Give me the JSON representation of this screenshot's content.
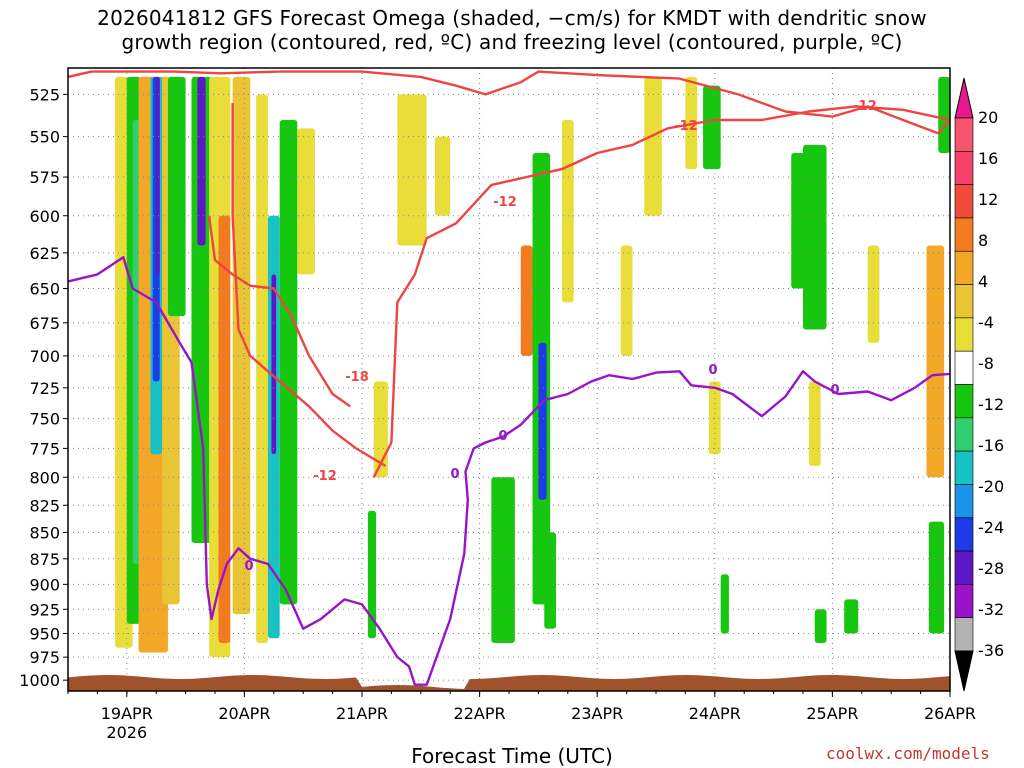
{
  "title": "2026041812 GFS Forecast Omega (shaded, −cm/s) for KMDT with dendritic snow\ngrowth region (contoured, red, ºC) and freezing level (contoured, purple, ºC)",
  "credit": "coolwx.com/models",
  "colors": {
    "ground": "#a0522d",
    "temp_contour": "#ef4444",
    "freezing_contour": "#9a13c9",
    "grid": "#888888"
  },
  "chart_data": {
    "type": "heatmap",
    "xlabel": "Forecast Time (UTC)",
    "ylabel": "",
    "x_ticks": [
      "19APR",
      "20APR",
      "21APR",
      "22APR",
      "23APR",
      "24APR",
      "25APR",
      "26APR"
    ],
    "x_year_label": "2026",
    "xlim_days": [
      18.5,
      26.0
    ],
    "y_ticks": [
      525,
      550,
      575,
      600,
      625,
      650,
      675,
      700,
      725,
      750,
      775,
      800,
      825,
      850,
      875,
      900,
      925,
      950,
      975,
      1000
    ],
    "ylim_hpa": [
      510,
      1012
    ],
    "y_scale": "log-pressure",
    "grid": true,
    "colorbar": {
      "labels": [
        "20",
        "16",
        "12",
        "8",
        "4",
        "-4",
        "-8",
        "-12",
        "-16",
        "-20",
        "-24",
        "-28",
        "-32",
        "-36"
      ],
      "colors": [
        "#f5566e",
        "#f5426a",
        "#ef4b38",
        "#f27a1f",
        "#f2a826",
        "#e9c435",
        "#e9dd3a",
        "#ffffff",
        "#17c70f",
        "#2fcf70",
        "#17c2c4",
        "#1994e6",
        "#1d3be6",
        "#5e17c7",
        "#9a13c9",
        "#b3b3b3"
      ],
      "top_arrow": "#e8198f",
      "bottom_arrow": "#000000"
    },
    "contour_labels": {
      "temperature": [
        "-18",
        "-12",
        "-12",
        "-12",
        "-12"
      ],
      "freezing": [
        "0",
        "0",
        "0",
        "0",
        "0"
      ]
    },
    "freezing_level_hpa": [
      {
        "t": 18.5,
        "p": 645
      },
      {
        "t": 18.75,
        "p": 640
      },
      {
        "t": 18.97,
        "p": 628
      },
      {
        "t": 19.05,
        "p": 650
      },
      {
        "t": 19.25,
        "p": 660
      },
      {
        "t": 19.45,
        "p": 690
      },
      {
        "t": 19.55,
        "p": 705
      },
      {
        "t": 19.65,
        "p": 775
      },
      {
        "t": 19.68,
        "p": 900
      },
      {
        "t": 19.72,
        "p": 935
      },
      {
        "t": 19.78,
        "p": 905
      },
      {
        "t": 19.85,
        "p": 880
      },
      {
        "t": 19.95,
        "p": 865
      },
      {
        "t": 20.05,
        "p": 875
      },
      {
        "t": 20.2,
        "p": 880
      },
      {
        "t": 20.35,
        "p": 905
      },
      {
        "t": 20.5,
        "p": 945
      },
      {
        "t": 20.65,
        "p": 935
      },
      {
        "t": 20.85,
        "p": 915
      },
      {
        "t": 21.0,
        "p": 920
      },
      {
        "t": 21.15,
        "p": 945
      },
      {
        "t": 21.3,
        "p": 975
      },
      {
        "t": 21.4,
        "p": 985
      },
      {
        "t": 21.45,
        "p": 1005
      },
      {
        "t": 21.55,
        "p": 1005
      },
      {
        "t": 21.75,
        "p": 935
      },
      {
        "t": 21.87,
        "p": 870
      },
      {
        "t": 21.9,
        "p": 820
      },
      {
        "t": 21.88,
        "p": 795
      },
      {
        "t": 21.95,
        "p": 775
      },
      {
        "t": 22.05,
        "p": 770
      },
      {
        "t": 22.2,
        "p": 765
      },
      {
        "t": 22.35,
        "p": 755
      },
      {
        "t": 22.55,
        "p": 735
      },
      {
        "t": 22.75,
        "p": 730
      },
      {
        "t": 22.95,
        "p": 720
      },
      {
        "t": 23.1,
        "p": 715
      },
      {
        "t": 23.3,
        "p": 718
      },
      {
        "t": 23.5,
        "p": 713
      },
      {
        "t": 23.7,
        "p": 712
      },
      {
        "t": 23.8,
        "p": 723
      },
      {
        "t": 24.0,
        "p": 725
      },
      {
        "t": 24.15,
        "p": 730
      },
      {
        "t": 24.4,
        "p": 748
      },
      {
        "t": 24.6,
        "p": 732
      },
      {
        "t": 24.75,
        "p": 712
      },
      {
        "t": 24.85,
        "p": 720
      },
      {
        "t": 25.05,
        "p": 730
      },
      {
        "t": 25.3,
        "p": 728
      },
      {
        "t": 25.5,
        "p": 735
      },
      {
        "t": 25.7,
        "p": 725
      },
      {
        "t": 25.85,
        "p": 715
      },
      {
        "t": 26.0,
        "p": 714
      }
    ],
    "minus12_upper_hpa": [
      {
        "t": 18.5,
        "p": 515
      },
      {
        "t": 18.7,
        "p": 512
      },
      {
        "t": 19.4,
        "p": 512
      },
      {
        "t": 19.8,
        "p": 513
      },
      {
        "t": 20.3,
        "p": 512
      },
      {
        "t": 21.0,
        "p": 512
      },
      {
        "t": 21.5,
        "p": 515
      },
      {
        "t": 21.8,
        "p": 520
      },
      {
        "t": 22.05,
        "p": 525
      },
      {
        "t": 22.35,
        "p": 518
      },
      {
        "t": 22.5,
        "p": 512
      },
      {
        "t": 23.0,
        "p": 514
      },
      {
        "t": 23.7,
        "p": 516
      },
      {
        "t": 24.2,
        "p": 525
      },
      {
        "t": 24.6,
        "p": 535
      },
      {
        "t": 25.0,
        "p": 538
      },
      {
        "t": 25.3,
        "p": 532
      },
      {
        "t": 25.6,
        "p": 540
      },
      {
        "t": 25.9,
        "p": 548
      },
      {
        "t": 26.0,
        "p": 540
      }
    ],
    "minus12_lower_hpa": [
      {
        "t": 21.1,
        "p": 800
      },
      {
        "t": 21.25,
        "p": 770
      },
      {
        "t": 21.3,
        "p": 660
      },
      {
        "t": 21.45,
        "p": 640
      },
      {
        "t": 21.55,
        "p": 615
      },
      {
        "t": 21.8,
        "p": 605
      },
      {
        "t": 22.1,
        "p": 580
      },
      {
        "t": 22.4,
        "p": 575
      },
      {
        "t": 22.7,
        "p": 570
      },
      {
        "t": 23.0,
        "p": 560
      },
      {
        "t": 23.3,
        "p": 555
      },
      {
        "t": 23.6,
        "p": 545
      },
      {
        "t": 24.0,
        "p": 540
      },
      {
        "t": 24.4,
        "p": 540
      },
      {
        "t": 24.8,
        "p": 535
      },
      {
        "t": 25.2,
        "p": 532
      },
      {
        "t": 25.6,
        "p": 534
      },
      {
        "t": 26.0,
        "p": 540
      }
    ],
    "minus18_hpa": [
      {
        "t": 20.9,
        "p": 740
      },
      {
        "t": 20.75,
        "p": 730
      },
      {
        "t": 20.55,
        "p": 700
      },
      {
        "t": 20.4,
        "p": 670
      },
      {
        "t": 20.25,
        "p": 650
      },
      {
        "t": 20.05,
        "p": 648
      },
      {
        "t": 19.9,
        "p": 640
      },
      {
        "t": 19.75,
        "p": 630
      },
      {
        "t": 19.7,
        "p": 600
      }
    ],
    "minus12_mid_hpa": [
      {
        "t": 21.2,
        "p": 790
      },
      {
        "t": 20.95,
        "p": 775
      },
      {
        "t": 20.75,
        "p": 760
      },
      {
        "t": 20.55,
        "p": 740
      },
      {
        "t": 20.3,
        "p": 720
      },
      {
        "t": 20.05,
        "p": 700
      },
      {
        "t": 19.95,
        "p": 680
      },
      {
        "t": 19.9,
        "p": 600
      },
      {
        "t": 19.9,
        "p": 530
      }
    ],
    "omega_blobs": [
      {
        "t0": 18.9,
        "t1": 19.05,
        "p0": 515,
        "p1": 965,
        "c": "#e9dd3a"
      },
      {
        "t0": 19.0,
        "t1": 19.12,
        "p0": 515,
        "p1": 940,
        "c": "#17c70f"
      },
      {
        "t0": 19.05,
        "t1": 19.15,
        "p0": 540,
        "p1": 880,
        "c": "#2fcf70"
      },
      {
        "t0": 19.1,
        "t1": 19.35,
        "p0": 515,
        "p1": 970,
        "c": "#f2a826"
      },
      {
        "t0": 19.2,
        "t1": 19.3,
        "p0": 515,
        "p1": 780,
        "c": "#17c2c4"
      },
      {
        "t0": 19.22,
        "t1": 19.28,
        "p0": 515,
        "p1": 720,
        "c": "#1d3be6"
      },
      {
        "t0": 19.25,
        "t1": 19.28,
        "p0": 515,
        "p1": 640,
        "c": "#5e17c7"
      },
      {
        "t0": 19.3,
        "t1": 19.45,
        "p0": 515,
        "p1": 920,
        "c": "#e9c435"
      },
      {
        "t0": 19.35,
        "t1": 19.5,
        "p0": 515,
        "p1": 670,
        "c": "#17c70f"
      },
      {
        "t0": 19.55,
        "t1": 19.72,
        "p0": 515,
        "p1": 860,
        "c": "#17c70f"
      },
      {
        "t0": 19.6,
        "t1": 19.67,
        "p0": 515,
        "p1": 620,
        "c": "#5e17c7"
      },
      {
        "t0": 19.7,
        "t1": 19.88,
        "p0": 515,
        "p1": 975,
        "c": "#e9dd3a"
      },
      {
        "t0": 19.78,
        "t1": 19.88,
        "p0": 600,
        "p1": 960,
        "c": "#f27a1f"
      },
      {
        "t0": 19.9,
        "t1": 20.05,
        "p0": 515,
        "p1": 930,
        "c": "#e9c435"
      },
      {
        "t0": 20.1,
        "t1": 20.2,
        "p0": 525,
        "p1": 960,
        "c": "#e9dd3a"
      },
      {
        "t0": 20.2,
        "t1": 20.3,
        "p0": 600,
        "p1": 955,
        "c": "#17c2c4"
      },
      {
        "t0": 20.23,
        "t1": 20.27,
        "p0": 640,
        "p1": 780,
        "c": "#5e17c7"
      },
      {
        "t0": 20.3,
        "t1": 20.45,
        "p0": 540,
        "p1": 920,
        "c": "#17c70f"
      },
      {
        "t0": 20.45,
        "t1": 20.6,
        "p0": 545,
        "p1": 640,
        "c": "#e9dd3a"
      },
      {
        "t0": 21.05,
        "t1": 21.12,
        "p0": 830,
        "p1": 955,
        "c": "#17c70f"
      },
      {
        "t0": 21.1,
        "t1": 21.22,
        "p0": 720,
        "p1": 800,
        "c": "#e9dd3a"
      },
      {
        "t0": 21.3,
        "t1": 21.55,
        "p0": 525,
        "p1": 620,
        "c": "#e9dd3a"
      },
      {
        "t0": 21.62,
        "t1": 21.75,
        "p0": 550,
        "p1": 600,
        "c": "#e9dd3a"
      },
      {
        "t0": 22.1,
        "t1": 22.3,
        "p0": 800,
        "p1": 960,
        "c": "#17c70f"
      },
      {
        "t0": 22.35,
        "t1": 22.45,
        "p0": 620,
        "p1": 700,
        "c": "#f27a1f"
      },
      {
        "t0": 22.45,
        "t1": 22.6,
        "p0": 560,
        "p1": 920,
        "c": "#17c70f"
      },
      {
        "t0": 22.5,
        "t1": 22.57,
        "p0": 690,
        "p1": 820,
        "c": "#1d3be6"
      },
      {
        "t0": 22.55,
        "t1": 22.65,
        "p0": 850,
        "p1": 945,
        "c": "#17c70f"
      },
      {
        "t0": 22.7,
        "t1": 22.8,
        "p0": 540,
        "p1": 660,
        "c": "#e9dd3a"
      },
      {
        "t0": 23.2,
        "t1": 23.3,
        "p0": 620,
        "p1": 700,
        "c": "#e9dd3a"
      },
      {
        "t0": 23.4,
        "t1": 23.55,
        "p0": 515,
        "p1": 600,
        "c": "#e9dd3a"
      },
      {
        "t0": 23.75,
        "t1": 23.85,
        "p0": 515,
        "p1": 570,
        "c": "#e9dd3a"
      },
      {
        "t0": 23.9,
        "t1": 24.05,
        "p0": 520,
        "p1": 570,
        "c": "#17c70f"
      },
      {
        "t0": 23.95,
        "t1": 24.05,
        "p0": 720,
        "p1": 780,
        "c": "#e9dd3a"
      },
      {
        "t0": 24.05,
        "t1": 24.12,
        "p0": 890,
        "p1": 950,
        "c": "#17c70f"
      },
      {
        "t0": 24.65,
        "t1": 24.8,
        "p0": 560,
        "p1": 650,
        "c": "#17c70f"
      },
      {
        "t0": 24.75,
        "t1": 24.95,
        "p0": 555,
        "p1": 680,
        "c": "#17c70f"
      },
      {
        "t0": 24.8,
        "t1": 24.9,
        "p0": 720,
        "p1": 790,
        "c": "#e9dd3a"
      },
      {
        "t0": 24.85,
        "t1": 24.95,
        "p0": 925,
        "p1": 960,
        "c": "#17c70f"
      },
      {
        "t0": 25.1,
        "t1": 25.22,
        "p0": 915,
        "p1": 950,
        "c": "#17c70f"
      },
      {
        "t0": 25.3,
        "t1": 25.4,
        "p0": 620,
        "p1": 690,
        "c": "#e9dd3a"
      },
      {
        "t0": 25.8,
        "t1": 25.95,
        "p0": 620,
        "p1": 800,
        "c": "#f2a826"
      },
      {
        "t0": 25.82,
        "t1": 25.95,
        "p0": 840,
        "p1": 950,
        "c": "#17c70f"
      },
      {
        "t0": 25.9,
        "t1": 26.0,
        "p0": 515,
        "p1": 560,
        "c": "#17c70f"
      }
    ]
  }
}
